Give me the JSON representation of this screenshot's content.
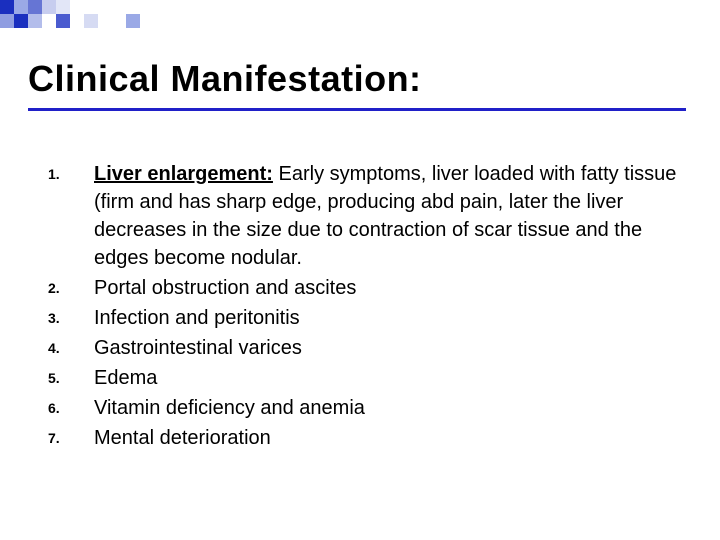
{
  "title": "Clinical Manifestation:",
  "decor": {
    "squares": [
      {
        "r": 0,
        "c": 0,
        "color": "#1a2fbf"
      },
      {
        "r": 0,
        "c": 1,
        "color": "#9aa9e6"
      },
      {
        "r": 0,
        "c": 2,
        "color": "#6675d4"
      },
      {
        "r": 0,
        "c": 3,
        "color": "#c7cdef"
      },
      {
        "r": 0,
        "c": 4,
        "color": "#e2e6f7"
      },
      {
        "r": 1,
        "c": 0,
        "color": "#8f9de1"
      },
      {
        "r": 1,
        "c": 1,
        "color": "#1a2fbf"
      },
      {
        "r": 1,
        "c": 2,
        "color": "#b3bdeb"
      },
      {
        "r": 1,
        "c": 4,
        "color": "#4a5bcf"
      },
      {
        "r": 1,
        "c": 6,
        "color": "#d6dbf3"
      },
      {
        "r": 1,
        "c": 9,
        "color": "#9aa9e6"
      }
    ],
    "sq_size": 14
  },
  "underline_color": "#2020c8",
  "title_fontsize": 36,
  "num_fontsize": 14,
  "body_fontsize": 20,
  "items": [
    {
      "num": "1.",
      "lead": "Liver enlargement:",
      "rest": " Early symptoms, liver loaded with fatty tissue (firm and has sharp edge, producing abd pain, later the liver decreases in the size due to contraction of scar tissue and the edges become nodular."
    },
    {
      "num": "2.",
      "lead": "",
      "rest": "Portal obstruction and ascites"
    },
    {
      "num": "3.",
      "lead": "",
      "rest": "Infection and peritonitis"
    },
    {
      "num": "4.",
      "lead": "",
      "rest": "Gastrointestinal varices"
    },
    {
      "num": "5.",
      "lead": "",
      "rest": "Edema"
    },
    {
      "num": "6.",
      "lead": "",
      "rest": "Vitamin deficiency and anemia"
    },
    {
      "num": "7.",
      "lead": "",
      "rest": "Mental deterioration"
    }
  ]
}
